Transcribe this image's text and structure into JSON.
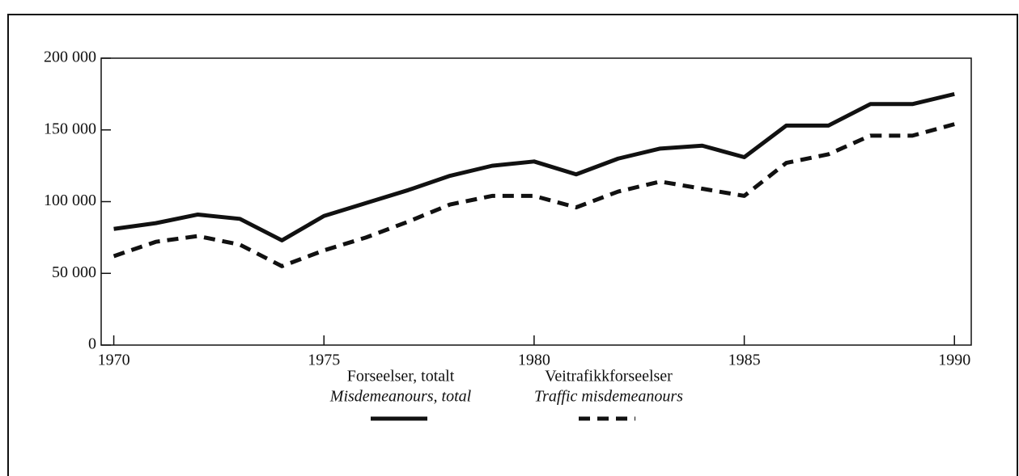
{
  "chart_data": {
    "type": "line",
    "x": [
      1970,
      1971,
      1972,
      1973,
      1974,
      1975,
      1976,
      1977,
      1978,
      1979,
      1980,
      1981,
      1982,
      1983,
      1984,
      1985,
      1986,
      1987,
      1988,
      1989,
      1990
    ],
    "series": [
      {
        "name": "Forseelser, totalt",
        "name_en": "Misdemeanours, total",
        "color": "#111111",
        "dash": false,
        "values": [
          81000,
          85000,
          91000,
          88000,
          73000,
          90000,
          99000,
          108000,
          118000,
          125000,
          128000,
          119000,
          130000,
          137000,
          139000,
          131000,
          153000,
          153000,
          168000,
          168000,
          175000
        ]
      },
      {
        "name": "Veitrafikkforseelser",
        "name_en": "Traffic misdemeanours",
        "color": "#111111",
        "dash": true,
        "values": [
          62000,
          72000,
          76000,
          70000,
          55000,
          66000,
          75000,
          86000,
          98000,
          104000,
          104000,
          96000,
          107000,
          114000,
          109000,
          104000,
          127000,
          133000,
          146000,
          146000,
          154000
        ]
      }
    ],
    "xlim": [
      1969.7,
      1990.4
    ],
    "xticks": [
      1970,
      1975,
      1980,
      1985,
      1990
    ],
    "ylim": [
      0,
      200000
    ],
    "yticks": [
      0,
      {
        "value": 50000,
        "label": "50 000"
      },
      {
        "value": 100000,
        "label": "100 000"
      },
      {
        "value": 150000,
        "label": "150 000"
      },
      {
        "value": 200000,
        "label": "200 000"
      }
    ],
    "grid": false
  }
}
